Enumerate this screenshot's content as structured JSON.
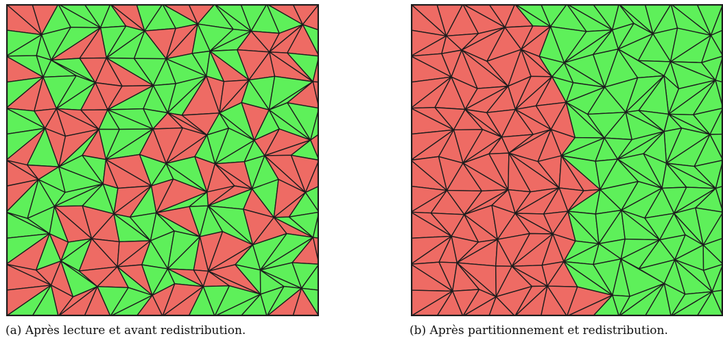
{
  "figure": {
    "panels": [
      {
        "id": "a",
        "caption": "(a) Après lecture et avant redistribution."
      },
      {
        "id": "b",
        "caption": "(b) Après partitionnement et redistribution."
      }
    ],
    "colors": {
      "partition_red": "#ee6b64",
      "partition_green": "#5ef05a",
      "mesh_edge": "#1d1d1d"
    }
  }
}
